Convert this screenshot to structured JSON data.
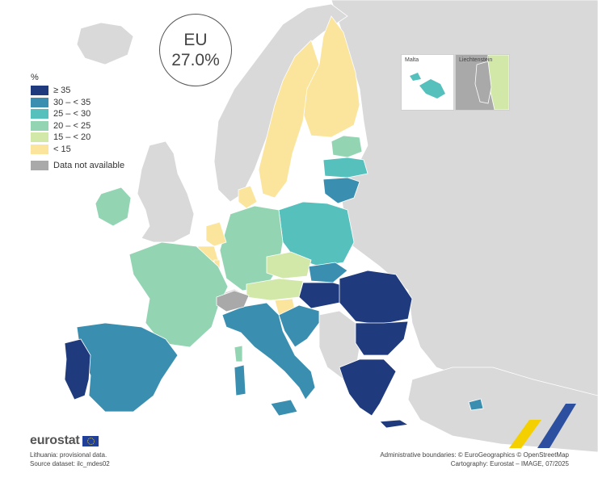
{
  "eu_box": {
    "label": "EU",
    "value": "27.0%"
  },
  "legend": {
    "unit": "%",
    "items": [
      {
        "label": "≥ 35",
        "color": "#1f3b7e"
      },
      {
        "label": "30 – < 35",
        "color": "#3a8fb0"
      },
      {
        "label": "25 – < 30",
        "color": "#56c0bc"
      },
      {
        "label": "20 – < 25",
        "color": "#93d5b3"
      },
      {
        "label": "15 – < 20",
        "color": "#d2e8a8"
      },
      {
        "label": "< 15",
        "color": "#fbe49c"
      },
      {
        "label": "Data not available",
        "color": "#a9a9a9"
      }
    ]
  },
  "insets": {
    "malta": "Malta",
    "liechtenstein": "Liechtenstein"
  },
  "logo": {
    "text": "eurostat"
  },
  "notes": {
    "line1": "Lithuania: provisional data.",
    "line2": "Source dataset: ilc_mdes02"
  },
  "credits": {
    "line1": "Administrative boundaries: © EuroGeographics © OpenStreetMap",
    "line2": "Cartography: Eurostat – IMAGE, 07/2025"
  },
  "colors": {
    "non_eu": "#d9d9d9",
    "background": "#ffffff",
    "ge35": "#1f3b7e",
    "r30_35": "#3a8fb0",
    "r25_30": "#56c0bc",
    "r20_25": "#93d5b3",
    "r15_20": "#d2e8a8",
    "lt15": "#fbe49c",
    "na": "#a9a9a9"
  }
}
